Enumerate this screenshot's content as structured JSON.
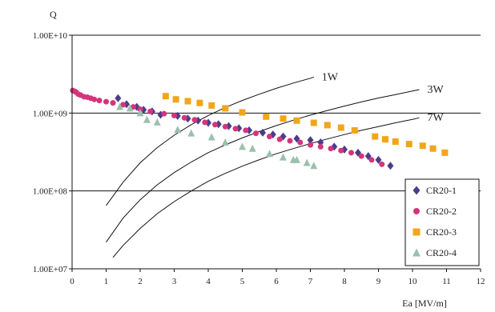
{
  "chart_data": {
    "type": "scatter",
    "title": "",
    "ylabel": "Q",
    "xlabel": "Ea [MV/m]",
    "xlim": [
      0,
      12
    ],
    "ylim": [
      10000000,
      10000000000
    ],
    "y_scale": "log",
    "x_ticks": [
      "0",
      "1",
      "2",
      "3",
      "4",
      "5",
      "6",
      "7",
      "8",
      "9",
      "10",
      "11",
      "12"
    ],
    "y_ticks": [
      "1.00E+07",
      "1.00E+08",
      "1.00E+09",
      "1.00E+10"
    ],
    "grid": "horizontal",
    "legend_position": "bottom-right",
    "series": [
      {
        "name": "CR20-1",
        "marker": "diamond",
        "color": "#4b3c8c",
        "points": [
          [
            1.35,
            1550000000.0
          ],
          [
            1.6,
            1300000000.0
          ],
          [
            1.9,
            1200000000.0
          ],
          [
            2.1,
            1100000000.0
          ],
          [
            2.35,
            1050000000.0
          ],
          [
            2.6,
            950000000.0
          ],
          [
            3.1,
            920000000.0
          ],
          [
            3.4,
            850000000.0
          ],
          [
            3.7,
            800000000.0
          ],
          [
            4.0,
            750000000.0
          ],
          [
            4.3,
            720000000.0
          ],
          [
            4.6,
            680000000.0
          ],
          [
            4.9,
            640000000.0
          ],
          [
            5.2,
            600000000.0
          ],
          [
            5.6,
            560000000.0
          ],
          [
            5.9,
            530000000.0
          ],
          [
            6.2,
            500000000.0
          ],
          [
            6.6,
            470000000.0
          ],
          [
            7.0,
            450000000.0
          ],
          [
            7.3,
            420000000.0
          ],
          [
            7.7,
            370000000.0
          ],
          [
            8.0,
            340000000.0
          ],
          [
            8.4,
            310000000.0
          ],
          [
            8.7,
            280000000.0
          ],
          [
            9.0,
            250000000.0
          ],
          [
            9.35,
            210000000.0
          ]
        ]
      },
      {
        "name": "CR20-2",
        "marker": "circle",
        "color": "#d4357a",
        "points": [
          [
            0.02,
            1950000000.0
          ],
          [
            0.08,
            1900000000.0
          ],
          [
            0.12,
            1850000000.0
          ],
          [
            0.18,
            1750000000.0
          ],
          [
            0.25,
            1700000000.0
          ],
          [
            0.35,
            1620000000.0
          ],
          [
            0.45,
            1600000000.0
          ],
          [
            0.55,
            1550000000.0
          ],
          [
            0.65,
            1500000000.0
          ],
          [
            0.8,
            1450000000.0
          ],
          [
            1.0,
            1400000000.0
          ],
          [
            1.2,
            1350000000.0
          ],
          [
            1.5,
            1280000000.0
          ],
          [
            1.8,
            1200000000.0
          ],
          [
            2.0,
            1120000000.0
          ],
          [
            2.3,
            1050000000.0
          ],
          [
            2.7,
            980000000.0
          ],
          [
            3.0,
            930000000.0
          ],
          [
            3.3,
            870000000.0
          ],
          [
            3.6,
            820000000.0
          ],
          [
            3.9,
            760000000.0
          ],
          [
            4.2,
            710000000.0
          ],
          [
            4.5,
            670000000.0
          ],
          [
            4.8,
            630000000.0
          ],
          [
            5.1,
            600000000.0
          ],
          [
            5.4,
            550000000.0
          ],
          [
            5.8,
            500000000.0
          ],
          [
            6.1,
            460000000.0
          ],
          [
            6.4,
            440000000.0
          ],
          [
            6.7,
            420000000.0
          ],
          [
            7.0,
            390000000.0
          ],
          [
            7.3,
            370000000.0
          ],
          [
            7.6,
            350000000.0
          ],
          [
            7.9,
            330000000.0
          ],
          [
            8.2,
            310000000.0
          ],
          [
            8.5,
            280000000.0
          ],
          [
            8.8,
            250000000.0
          ],
          [
            9.1,
            220000000.0
          ]
        ]
      },
      {
        "name": "CR20-3",
        "marker": "square",
        "color": "#f2a51b",
        "points": [
          [
            2.75,
            1650000000.0
          ],
          [
            3.05,
            1500000000.0
          ],
          [
            3.4,
            1420000000.0
          ],
          [
            3.75,
            1350000000.0
          ],
          [
            4.1,
            1250000000.0
          ],
          [
            4.5,
            1150000000.0
          ],
          [
            5.0,
            1020000000.0
          ],
          [
            5.7,
            900000000.0
          ],
          [
            6.2,
            850000000.0
          ],
          [
            6.6,
            800000000.0
          ],
          [
            7.1,
            750000000.0
          ],
          [
            7.5,
            700000000.0
          ],
          [
            7.9,
            650000000.0
          ],
          [
            8.3,
            600000000.0
          ],
          [
            8.9,
            500000000.0
          ],
          [
            9.2,
            460000000.0
          ],
          [
            9.5,
            430000000.0
          ],
          [
            9.9,
            400000000.0
          ],
          [
            10.3,
            380000000.0
          ],
          [
            10.6,
            350000000.0
          ],
          [
            10.95,
            310000000.0
          ]
        ]
      },
      {
        "name": "CR20-4",
        "marker": "triangle",
        "color": "#9bc0ad",
        "points": [
          [
            1.4,
            1200000000.0
          ],
          [
            1.7,
            1150000000.0
          ],
          [
            2.0,
            1000000000.0
          ],
          [
            2.2,
            820000000.0
          ],
          [
            2.5,
            760000000.0
          ],
          [
            3.1,
            610000000.0
          ],
          [
            3.5,
            550000000.0
          ],
          [
            4.1,
            490000000.0
          ],
          [
            4.5,
            420000000.0
          ],
          [
            5.0,
            370000000.0
          ],
          [
            5.3,
            350000000.0
          ],
          [
            5.8,
            300000000.0
          ],
          [
            6.2,
            270000000.0
          ],
          [
            6.5,
            250000000.0
          ],
          [
            6.6,
            250000000.0
          ],
          [
            6.9,
            230000000.0
          ],
          [
            7.1,
            210000000.0
          ]
        ]
      }
    ],
    "curves": [
      {
        "label": "1W",
        "points": [
          [
            1.0,
            65000000.0
          ],
          [
            1.5,
            130000000.0
          ],
          [
            2.0,
            230000000.0
          ],
          [
            2.5,
            360000000.0
          ],
          [
            3.0,
            520000000.0
          ],
          [
            3.5,
            710000000.0
          ],
          [
            4.0,
            930000000.0
          ],
          [
            4.5,
            1180000000.0
          ],
          [
            5.0,
            1450000000.0
          ],
          [
            5.5,
            1750000000.0
          ],
          [
            6.0,
            2080000000.0
          ],
          [
            6.5,
            2430000000.0
          ],
          [
            7.0,
            2800000000.0
          ],
          [
            7.1,
            2900000000.0
          ]
        ]
      },
      {
        "label": "3W",
        "points": [
          [
            1.0,
            22000000.0
          ],
          [
            1.5,
            45000000.0
          ],
          [
            2.0,
            77000000.0
          ],
          [
            2.5,
            120000000.0
          ],
          [
            3.0,
            172000000.0
          ],
          [
            3.5,
            235000000.0
          ],
          [
            4.0,
            310000000.0
          ],
          [
            4.5,
            390000000.0
          ],
          [
            5.0,
            480000000.0
          ],
          [
            5.5,
            580000000.0
          ],
          [
            6.0,
            690000000.0
          ],
          [
            6.5,
            810000000.0
          ],
          [
            7.0,
            940000000.0
          ],
          [
            7.5,
            1080000000.0
          ],
          [
            8.0,
            1230000000.0
          ],
          [
            8.5,
            1390000000.0
          ],
          [
            9.0,
            1560000000.0
          ],
          [
            9.5,
            1730000000.0
          ],
          [
            10.0,
            1920000000.0
          ],
          [
            10.2,
            2000000000.0
          ]
        ]
      },
      {
        "label": "7W",
        "points": [
          [
            1.2,
            14000000.0
          ],
          [
            1.5,
            20000000.0
          ],
          [
            2.0,
            33000000.0
          ],
          [
            2.5,
            51000000.0
          ],
          [
            3.0,
            73000000.0
          ],
          [
            3.5,
            100000000.0
          ],
          [
            4.0,
            133000000.0
          ],
          [
            4.5,
            168000000.0
          ],
          [
            5.0,
            208000000.0
          ],
          [
            5.5,
            252000000.0
          ],
          [
            6.0,
            300000000.0
          ],
          [
            6.5,
            350000000.0
          ],
          [
            7.0,
            405000000.0
          ],
          [
            7.5,
            465000000.0
          ],
          [
            8.0,
            530000000.0
          ],
          [
            8.5,
            600000000.0
          ],
          [
            9.0,
            670000000.0
          ],
          [
            9.5,
            750000000.0
          ],
          [
            10.0,
            830000000.0
          ],
          [
            10.2,
            870000000.0
          ]
        ]
      }
    ]
  }
}
